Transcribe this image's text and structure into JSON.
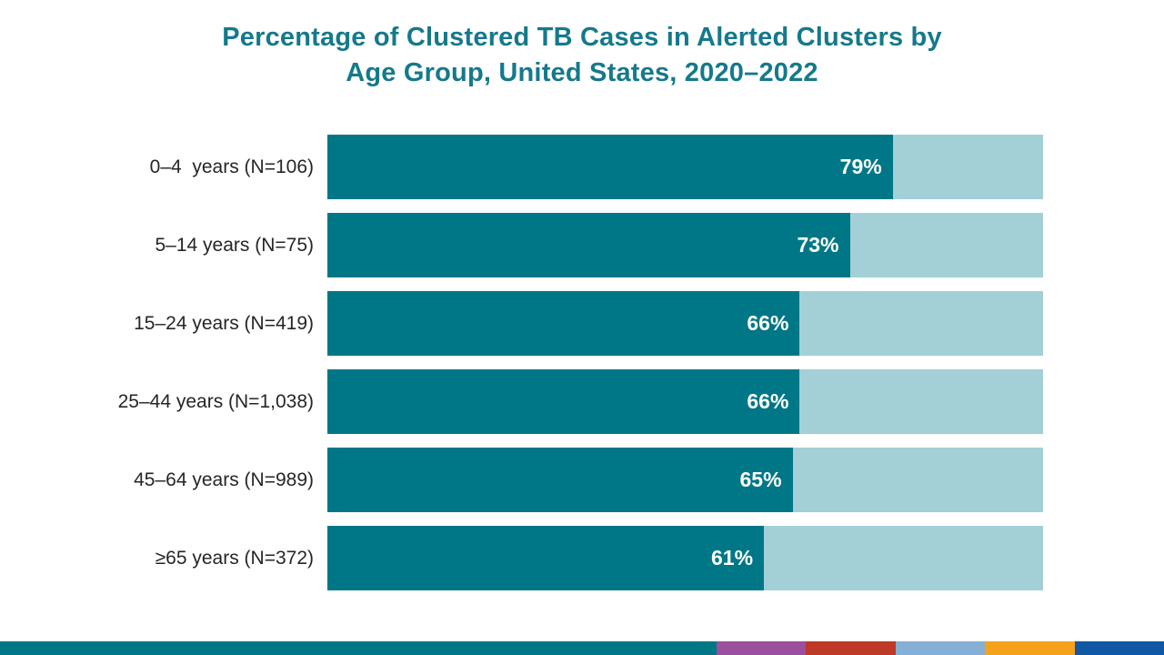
{
  "title": {
    "line1": "Percentage of Clustered TB Cases in Alerted Clusters by",
    "line2": "Age Group, United States, 2020–2022"
  },
  "colors": {
    "title": "#15798B",
    "bar_dark": "#007787",
    "bar_light": "#A3CFD7",
    "label_text": "#262626",
    "value_text": "#FFFFFF"
  },
  "chart_data": {
    "type": "bar",
    "orientation": "horizontal",
    "stacked_to_100_percent": true,
    "title": "Percentage of Clustered TB Cases in Alerted Clusters by Age Group, United States, 2020–2022",
    "categories": [
      "0–4  years (N=106)",
      "5–14 years (N=75)",
      "15–24 years (N=419)",
      "25–44 years (N=1,038)",
      "45–64 years (N=989)",
      "≥65 years (N=372)"
    ],
    "values": [
      79,
      73,
      66,
      66,
      65,
      61
    ],
    "value_labels": [
      "79%",
      "73%",
      "66%",
      "66%",
      "65%",
      "61%"
    ],
    "sample_sizes": [
      106,
      75,
      419,
      1038,
      989,
      372
    ],
    "xlim": [
      0,
      100
    ],
    "grid": false,
    "legend": false,
    "rows": [
      {
        "label": "0–4  years (N=106)",
        "value": 79,
        "value_label": "79%"
      },
      {
        "label": "5–14 years (N=75)",
        "value": 73,
        "value_label": "73%"
      },
      {
        "label": "15–24 years (N=419)",
        "value": 66,
        "value_label": "66%"
      },
      {
        "label": "25–44 years (N=1,038)",
        "value": 66,
        "value_label": "66%"
      },
      {
        "label": "45–64 years (N=989)",
        "value": 65,
        "value_label": "65%"
      },
      {
        "label": "≥65 years (N=372)",
        "value": 61,
        "value_label": "61%"
      }
    ]
  },
  "footer": {
    "segments": [
      {
        "name": "teal",
        "color": "#007785"
      },
      {
        "name": "purple",
        "color": "#9C4F9B"
      },
      {
        "name": "red",
        "color": "#BF3927"
      },
      {
        "name": "light-blue",
        "color": "#85AFD4"
      },
      {
        "name": "orange",
        "color": "#F4A21D"
      },
      {
        "name": "navy",
        "color": "#1057A5"
      }
    ]
  }
}
